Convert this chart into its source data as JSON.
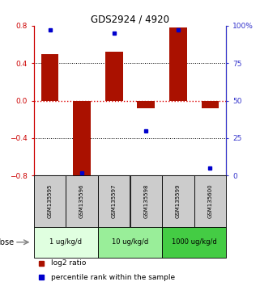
{
  "title": "GDS2924 / 4920",
  "samples": [
    "GSM135595",
    "GSM135596",
    "GSM135597",
    "GSM135598",
    "GSM135599",
    "GSM135600"
  ],
  "log2_ratio": [
    0.5,
    -0.82,
    0.52,
    -0.08,
    0.78,
    -0.08
  ],
  "percentile": [
    97,
    2,
    95,
    30,
    97,
    5
  ],
  "ylim_left": [
    -0.8,
    0.8
  ],
  "ylim_right": [
    0,
    100
  ],
  "yticks_left": [
    -0.8,
    -0.4,
    0,
    0.4,
    0.8
  ],
  "yticks_right": [
    0,
    25,
    50,
    75,
    100
  ],
  "ytick_labels_right": [
    "0",
    "25",
    "50",
    "75",
    "100%"
  ],
  "bar_color": "#aa1100",
  "dot_color": "#0000cc",
  "bar_width": 0.55,
  "dose_groups": [
    {
      "label": "1 ug/kg/d",
      "samples": [
        0,
        1
      ],
      "color": "#e0ffe0"
    },
    {
      "label": "10 ug/kg/d",
      "samples": [
        2,
        3
      ],
      "color": "#99ee99"
    },
    {
      "label": "1000 ug/kg/d",
      "samples": [
        4,
        5
      ],
      "color": "#44cc44"
    }
  ],
  "dose_label": "dose",
  "legend_bar_label": "log2 ratio",
  "legend_dot_label": "percentile rank within the sample",
  "hline_color": "#dd0000",
  "sample_bg_color": "#cccccc",
  "left_axis_color": "#cc0000",
  "right_axis_color": "#3333cc"
}
